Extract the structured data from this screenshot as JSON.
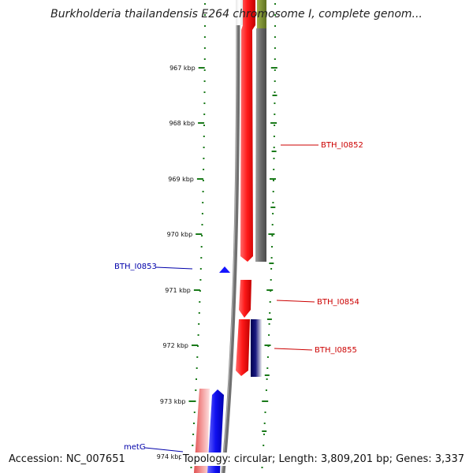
{
  "header": {
    "title": "Burkholderia thailandensis E264 chromosome I, complete genom..."
  },
  "footer": {
    "accession": "Accession: NC_007651",
    "summary": "Topology: circular; Length: 3,809,201 bp; Genes: 3,337"
  },
  "colors": {
    "forward_gene": "#e8141c",
    "reverse_gene": "#1414e6",
    "dark_strand": "#6e6e6e",
    "rrna_pink": "#f08080",
    "navy_gene": "#0a0a64",
    "olive": "#7a8c2c",
    "tick_green": "#1a7a1a",
    "label_red": "#cc0000",
    "label_blue": "#0000aa"
  },
  "ruler": {
    "ticks": [
      "967 kbp",
      "968 kbp",
      "969 kbp",
      "970 kbp",
      "971 kbp",
      "972 kbp",
      "973 kbp",
      "974 kbp"
    ]
  },
  "genes": [
    {
      "name": "BTH_I0852",
      "strand": "+"
    },
    {
      "name": "BTH_I0853",
      "strand": "-"
    },
    {
      "name": "BTH_I0854",
      "strand": "+"
    },
    {
      "name": "BTH_I0855",
      "strand": "+"
    },
    {
      "name": "metG",
      "strand": "-"
    }
  ]
}
